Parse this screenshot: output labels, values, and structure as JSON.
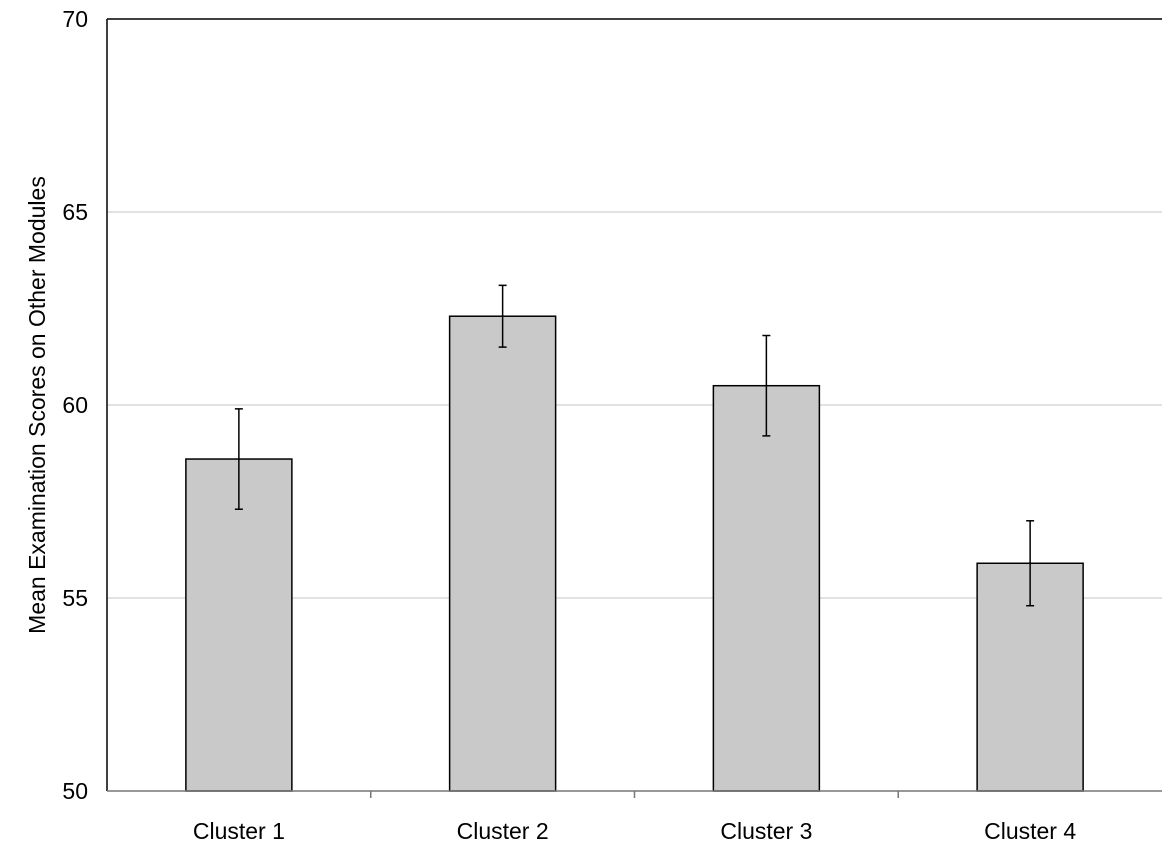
{
  "chart_data": {
    "type": "bar",
    "title": "",
    "xlabel": "",
    "ylabel": "Mean Examination Scores on Other Modules",
    "categories": [
      "Cluster 1",
      "Cluster 2",
      "Cluster 3",
      "Cluster 4"
    ],
    "values": [
      58.6,
      62.3,
      60.5,
      55.9
    ],
    "error_low": [
      57.3,
      61.5,
      59.2,
      54.8
    ],
    "error_high": [
      59.9,
      63.1,
      61.8,
      57.0
    ],
    "ylim": [
      50,
      70
    ],
    "yticks": [
      "50",
      "55",
      "60",
      "65",
      "70"
    ],
    "grid": true,
    "bar_color": "#c9c9c9",
    "bar_edge_color": "#000000",
    "grid_color": "#d9d9d9"
  }
}
